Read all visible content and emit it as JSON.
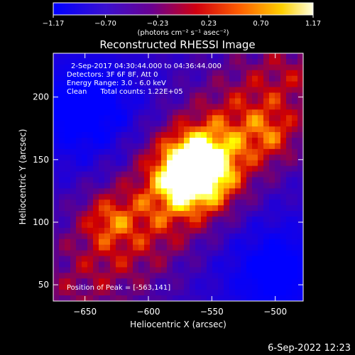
{
  "colorbar": {
    "ticks": [
      "-1.17",
      "-0.70",
      "-0.23",
      "0.23",
      "0.70",
      "1.17"
    ],
    "unit_label": "(photons cm⁻² s⁻¹ asec⁻²)",
    "range": [
      -1.17,
      1.17
    ]
  },
  "chart_data": {
    "type": "heatmap",
    "title": "Reconstructed RHESSI Image",
    "xlabel": "Heliocentric X (arcsec)",
    "ylabel": "Heliocentric Y (arcsec)",
    "xlim": [
      -675,
      -478
    ],
    "ylim": [
      37,
      235
    ],
    "xticks": [
      -650,
      -600,
      -550,
      -500
    ],
    "xtick_labels": [
      "−650",
      "−600",
      "−550",
      "−500"
    ],
    "yticks": [
      50,
      100,
      150,
      200
    ],
    "ytick_labels": [
      "50",
      "100",
      "150",
      "200"
    ],
    "peak": [
      -563,
      141
    ],
    "value_range": [
      -1.17,
      1.17
    ],
    "colormap": [
      "#0000ff",
      "#5a0090",
      "#d00000",
      "#ff8000",
      "#ffff00",
      "#ffffff"
    ],
    "annotations": [
      "2-Sep-2017 04:30:44.000 to 04:36:44.000",
      "Detectors: 3F 6F 8F, Att 0",
      "Energy Range: 3.0 - 6.0 keV",
      "Clean      Total counts: 1.22E+05"
    ],
    "peak_label": "Position of Peak = [-563,141]"
  },
  "timestamp": "6-Sep-2022 12:23"
}
